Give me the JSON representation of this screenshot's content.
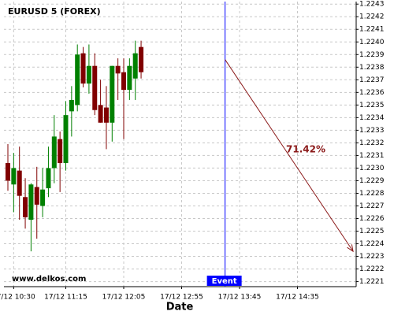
{
  "chart_data": {
    "type": "candlestick",
    "title": "EURUSD 5 (FOREX)",
    "watermark": "www.delkos.com",
    "x_label": "Date",
    "categories": [
      null,
      "17/12 10:30",
      null,
      null,
      null,
      null,
      null,
      null,
      null,
      null,
      "17/12 11:15",
      null,
      null,
      null,
      null,
      null,
      null,
      null,
      null,
      null,
      "17/12 12:05",
      null,
      null,
      null,
      null,
      null,
      null,
      null,
      null,
      null,
      "17/12 12:55",
      null,
      null,
      null,
      null,
      null,
      null,
      null,
      null,
      null,
      "17/12 13:45",
      null,
      null,
      null,
      null,
      null,
      null,
      null,
      null,
      null,
      "17/12 14:35",
      null,
      null,
      null,
      null,
      null,
      null,
      null,
      null,
      null,
      null
    ],
    "open": [
      1.22304,
      1.22287,
      1.22298,
      1.22277,
      1.22259,
      1.22285,
      1.2227,
      1.22284,
      1.223,
      1.22323,
      1.22304,
      1.22345,
      1.2235,
      1.22391,
      1.22367,
      1.22381,
      1.2235,
      1.22348,
      1.22336,
      1.22381,
      1.22376,
      1.22362,
      1.22371,
      1.22396,
      null,
      null,
      null,
      null,
      null,
      null,
      null,
      null,
      null,
      null,
      null,
      null,
      null,
      null,
      null,
      null,
      null,
      null,
      null,
      null,
      null,
      null,
      null,
      null,
      null,
      null,
      null,
      null,
      null,
      null,
      null,
      null,
      null,
      null,
      null,
      null,
      null
    ],
    "high": [
      1.22319,
      1.22312,
      1.22317,
      1.22292,
      1.22288,
      1.22301,
      1.223,
      1.22317,
      1.22342,
      1.22329,
      1.22353,
      1.22365,
      1.22398,
      1.22396,
      1.22398,
      1.22391,
      1.2237,
      1.22365,
      1.22381,
      1.22387,
      1.22387,
      1.22387,
      1.22401,
      1.22401,
      null,
      null,
      null,
      null,
      null,
      null,
      null,
      null,
      null,
      null,
      null,
      null,
      null,
      null,
      null,
      null,
      null,
      null,
      null,
      null,
      null,
      null,
      null,
      null,
      null,
      null,
      null,
      null,
      null,
      null,
      null,
      null,
      null,
      null,
      null,
      null,
      null
    ],
    "low": [
      1.22282,
      1.22265,
      1.22259,
      1.22252,
      1.22234,
      1.22244,
      1.22261,
      1.22277,
      1.22288,
      1.22281,
      1.22298,
      1.22325,
      1.22345,
      1.22364,
      1.22359,
      1.22342,
      1.22336,
      1.22315,
      1.22321,
      1.22354,
      1.22323,
      1.22354,
      1.22354,
      1.22371,
      null,
      null,
      null,
      null,
      null,
      null,
      null,
      null,
      null,
      null,
      null,
      null,
      null,
      null,
      null,
      null,
      null,
      null,
      null,
      null,
      null,
      null,
      null,
      null,
      null,
      null,
      null,
      null,
      null,
      null,
      null,
      null,
      null,
      null,
      null,
      null,
      null
    ],
    "close": [
      1.2229,
      1.223,
      1.22278,
      1.22261,
      1.22287,
      1.22271,
      1.22283,
      1.223,
      1.22325,
      1.22304,
      1.22342,
      1.22354,
      1.2239,
      1.22367,
      1.22381,
      1.22346,
      1.22336,
      1.22336,
      1.22381,
      1.22375,
      1.22362,
      1.22381,
      1.22391,
      1.22376,
      null,
      null,
      null,
      null,
      null,
      null,
      null,
      null,
      null,
      null,
      null,
      null,
      null,
      null,
      null,
      null,
      null,
      null,
      null,
      null,
      null,
      null,
      null,
      null,
      null,
      null,
      null,
      null,
      null,
      null,
      null,
      null,
      null,
      null,
      null,
      null,
      null
    ],
    "up_color": "#008000",
    "down_color": "#800000",
    "ylim": [
      1.22206,
      1.22432
    ],
    "yticks": [
      1.2221,
      1.2222,
      1.2223,
      1.2224,
      1.2225,
      1.2226,
      1.2227,
      1.2228,
      1.2229,
      {
        "value": 1.223,
        "label": "1.2230"
      },
      1.2231,
      1.2232,
      1.2233,
      1.2234,
      1.2235,
      1.2236,
      1.2237,
      1.2238,
      1.2239,
      {
        "value": 1.224,
        "label": "1.2240"
      },
      1.2241,
      1.2242,
      1.2243
    ],
    "grid": true,
    "event": {
      "label": "Event",
      "x": 37.5,
      "color": "#0000ff"
    },
    "arrow": {
      "label": "71.42%",
      "start": [
        37.5,
        1.22386
      ],
      "end": [
        59.6,
        1.22234
      ],
      "color": "#8b1a1a"
    }
  }
}
